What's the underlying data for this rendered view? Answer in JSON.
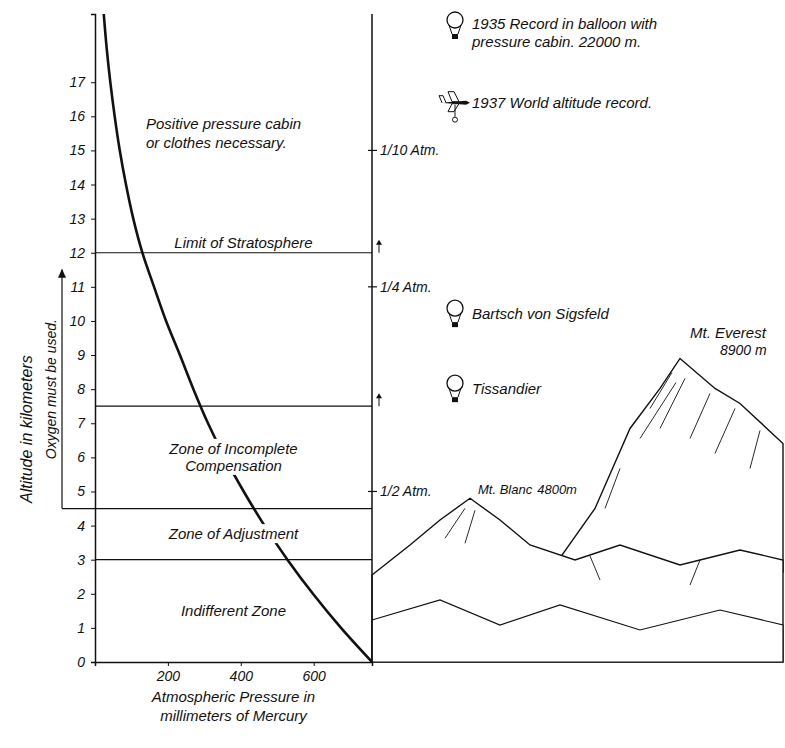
{
  "chart_data": {
    "type": "line",
    "x_label": "Atmospheric Pressure in millimeters of Mercury",
    "y_label": "Altitude in kilometers",
    "x": [
      760,
      675,
      598,
      528,
      465,
      408,
      356,
      310,
      270,
      233,
      195,
      162,
      130,
      105,
      85,
      68,
      54,
      42,
      32,
      24
    ],
    "values": [
      0,
      1,
      2,
      3,
      4,
      5,
      6,
      7,
      8,
      9,
      10,
      11,
      12,
      13,
      14,
      15,
      16,
      17,
      18,
      19
    ],
    "color": "#111111",
    "xlim": [
      0,
      760
    ],
    "xticks": [
      200,
      400,
      600
    ],
    "ylim": [
      0,
      19
    ],
    "yticks": [
      0,
      1,
      2,
      3,
      4,
      5,
      6,
      7,
      8,
      9,
      10,
      11,
      12,
      13,
      14,
      15,
      16,
      17
    ],
    "grid": false,
    "zones": [
      {
        "label": "Indifferent Zone",
        "from": 0,
        "to": 3
      },
      {
        "label": "Zone of Adjustment",
        "from": 3,
        "to": 4.5
      },
      {
        "label": "Zone of Incomplete Compensation",
        "from": 4.5,
        "to": 7.5
      }
    ],
    "stratosphere": {
      "label": "Limit of Stratosphere",
      "y": 12
    },
    "positive_zone": {
      "text": "Positive pressure cabin or clothes necessary.",
      "from": 12
    },
    "oxygen": {
      "text": "Oxygen must be used.",
      "from": 4.5,
      "to": 11.5
    },
    "atm_marks": [
      {
        "value": 5,
        "label": "1/2 Atm."
      },
      {
        "value": 11,
        "label": "1/4 Atm."
      },
      {
        "value": 15,
        "label": "1/10 Atm."
      }
    ],
    "records": [
      {
        "text": "1935 Record in balloon with pressure cabin. 22000 m.",
        "marker": "balloon"
      },
      {
        "text": "1937 World altitude record.",
        "marker": "plane",
        "y": 16.4
      },
      {
        "text": "Bartsch von Sigsfeld",
        "marker": "balloon",
        "y": 10.2
      },
      {
        "text": "Tissandier",
        "marker": "balloon",
        "y": 8
      }
    ],
    "mountains": [
      {
        "name": "Mt. Everest",
        "label": "8900 m",
        "y": 8.9
      },
      {
        "name": "Mt. Blanc",
        "label": "4800m",
        "y": 4.8
      }
    ]
  }
}
